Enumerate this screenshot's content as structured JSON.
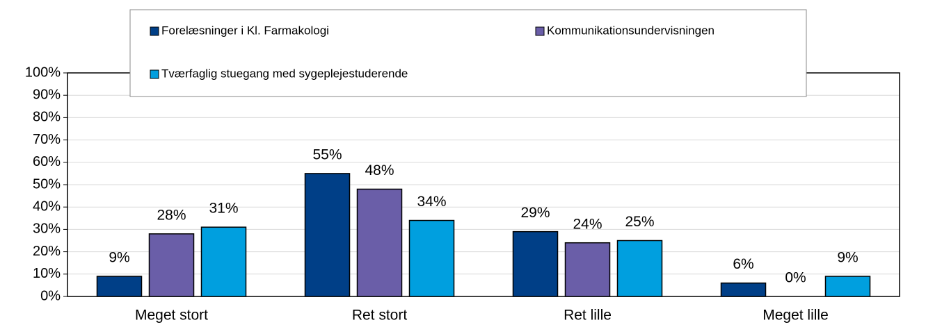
{
  "chart_data": {
    "type": "bar",
    "categories": [
      "Meget stort",
      "Ret stort",
      "Ret lille",
      "Meget lille"
    ],
    "series": [
      {
        "name": "Forelæsninger i Kl. Farmakologi",
        "color": "#003f87",
        "values": [
          9,
          55,
          29,
          6
        ],
        "value_labels": [
          "9%",
          "55%",
          "29%",
          "6%"
        ]
      },
      {
        "name": "Kommunikationsundervisningen",
        "color": "#6a5ea8",
        "values": [
          28,
          48,
          24,
          0
        ],
        "value_labels": [
          "28%",
          "48%",
          "24%",
          "0%"
        ]
      },
      {
        "name": "Tværfaglig stuegang med sygeplejestuderende",
        "color": "#009fdf",
        "values": [
          31,
          34,
          25,
          9
        ],
        "value_labels": [
          "31%",
          "34%",
          "25%",
          "9%"
        ]
      }
    ],
    "ylim": [
      0,
      100
    ],
    "yticks": [
      {
        "value": 0,
        "label": "0%"
      },
      {
        "value": 10,
        "label": "10%"
      },
      {
        "value": 20,
        "label": "20%"
      },
      {
        "value": 30,
        "label": "30%"
      },
      {
        "value": 40,
        "label": "40%"
      },
      {
        "value": 50,
        "label": "50%"
      },
      {
        "value": 60,
        "label": "60%"
      },
      {
        "value": 70,
        "label": "70%"
      },
      {
        "value": 80,
        "label": "80%"
      },
      {
        "value": 90,
        "label": "90%"
      },
      {
        "value": 100,
        "label": "100%"
      }
    ],
    "grid": true
  }
}
